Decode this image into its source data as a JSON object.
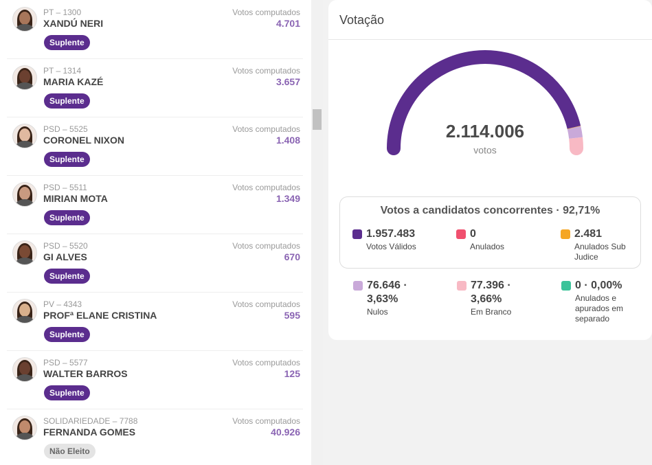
{
  "candidates": [
    {
      "party": "PT – 1300",
      "name": "XANDÚ NERI",
      "votes_label": "Votos computados",
      "votes": "4.701",
      "status": "Suplente"
    },
    {
      "party": "PT – 1314",
      "name": "MARIA KAZÉ",
      "votes_label": "Votos computados",
      "votes": "3.657",
      "status": "Suplente"
    },
    {
      "party": "PSD – 5525",
      "name": "CORONEL NIXON",
      "votes_label": "Votos computados",
      "votes": "1.408",
      "status": "Suplente"
    },
    {
      "party": "PSD – 5511",
      "name": "MIRIAN MOTA",
      "votes_label": "Votos computados",
      "votes": "1.349",
      "status": "Suplente"
    },
    {
      "party": "PSD – 5520",
      "name": "GI ALVES",
      "votes_label": "Votos computados",
      "votes": "670",
      "status": "Suplente"
    },
    {
      "party": "PV – 4343",
      "name": "PROFª ELANE CRISTINA",
      "votes_label": "Votos computados",
      "votes": "595",
      "status": "Suplente"
    },
    {
      "party": "PSD – 5577",
      "name": "WALTER BARROS",
      "votes_label": "Votos computados",
      "votes": "125",
      "status": "Suplente"
    },
    {
      "party": "SOLIDARIEDADE – 7788",
      "name": "FERNANDA GOMES",
      "votes_label": "Votos computados",
      "votes": "40.926",
      "status": "Não Eleito"
    }
  ],
  "panel": {
    "title": "Votação",
    "total": "2.114.006",
    "total_unit": "votos",
    "box_title": "Votos a candidatos concorrentes · 92,71%",
    "box_stats": [
      {
        "name": "Votos Válidos",
        "value": 1957483,
        "value_label": "1.957.483",
        "color": "#5b2d8e"
      },
      {
        "name": "Anulados",
        "value": 0,
        "value_label": "0",
        "color": "#f0506e"
      },
      {
        "name": "Anulados Sub Judice",
        "value": 2481,
        "value_label": "2.481",
        "color": "#f5a623"
      }
    ],
    "other_stats": [
      {
        "name": "Nulos",
        "value": 76646,
        "value_label": "76.646 · 3,63%",
        "color": "#c9a9d9"
      },
      {
        "name": "Em Branco",
        "value": 77396,
        "value_label": "77.396 · 3,66%",
        "color": "#f8b9c4"
      },
      {
        "name": "Anulados e apurados em separado",
        "value": 0,
        "value_label": "0 · 0,00%",
        "color": "#3cc39a"
      }
    ]
  }
}
